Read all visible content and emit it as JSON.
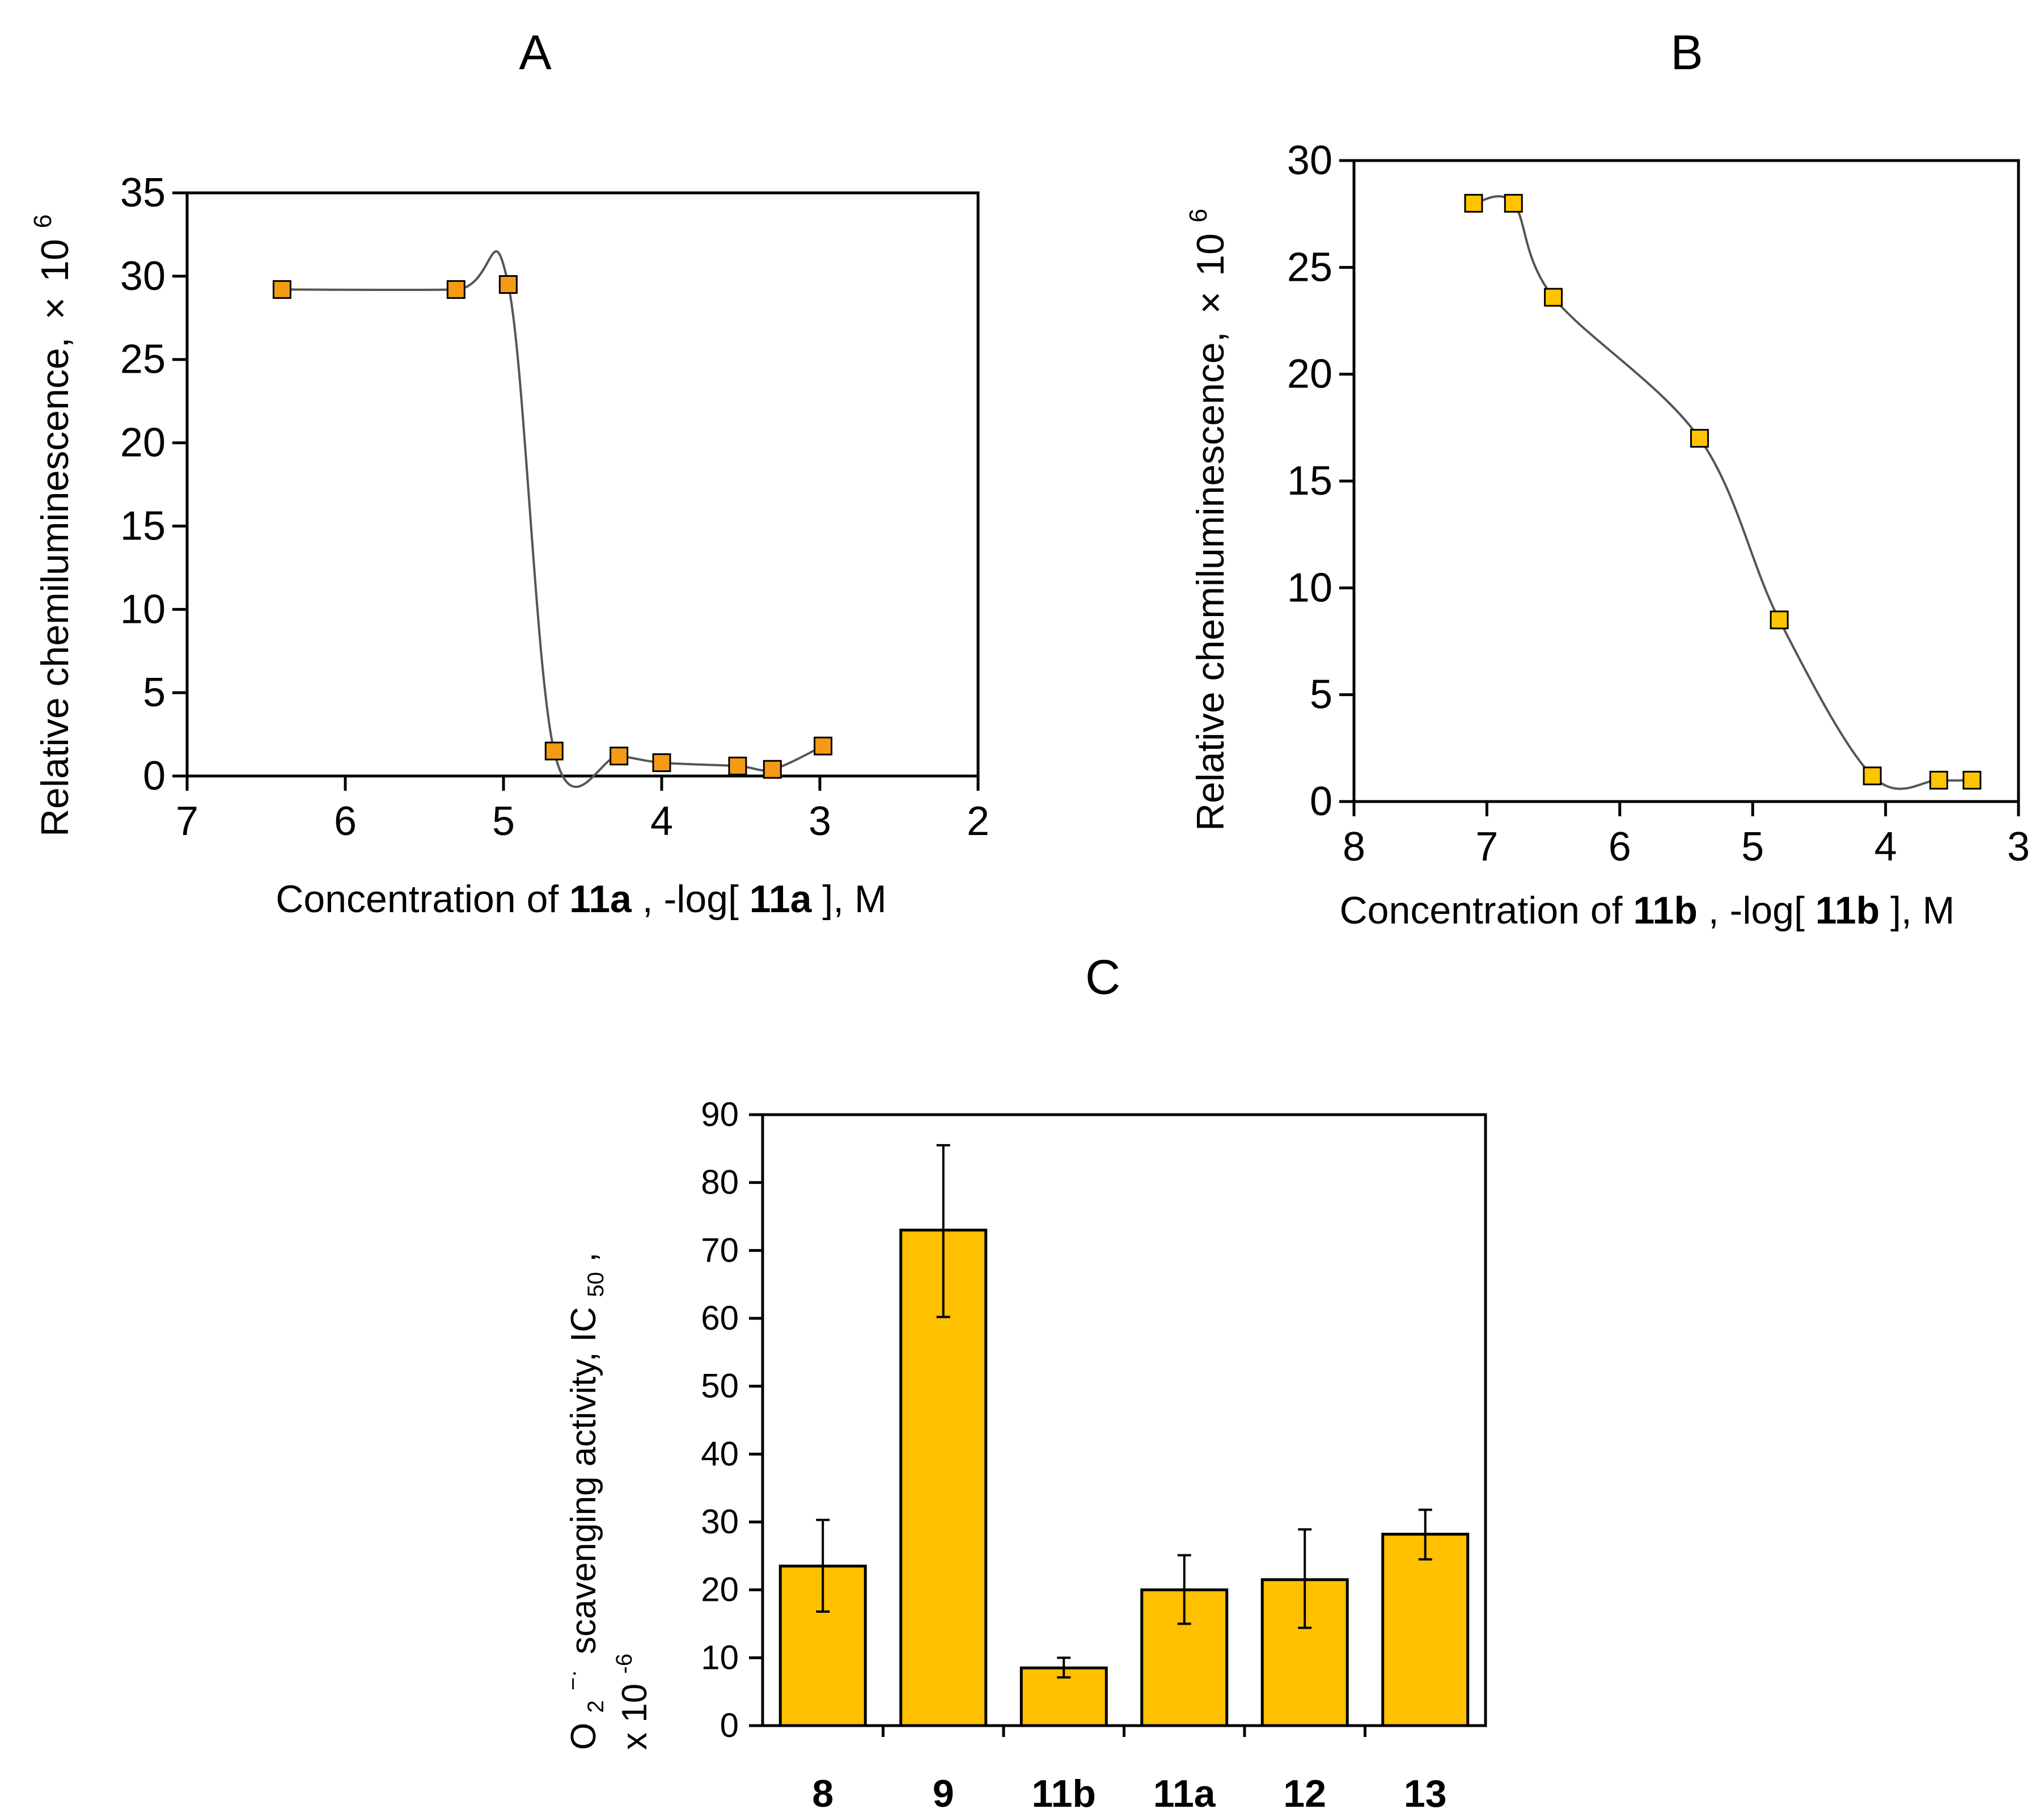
{
  "colors": {
    "marker_A": "#f59a14",
    "marker_B": "#ffc400",
    "bar_C": "#ffc000",
    "line": "#555555",
    "axis": "#000000"
  },
  "chart_data": [
    {
      "id": "A",
      "type": "line",
      "panel_label": "A",
      "ylabel_main": "Relative chemiluminescence,",
      "ylabel_mult": "×",
      "ylabel_base": "10",
      "ylabel_exp": "6",
      "xlabel_pre": "Concentration of ",
      "xlabel_cmp1": "11a",
      "xlabel_mid": ", -log[",
      "xlabel_cmp2": "11a",
      "xlabel_post": "], M",
      "xlim": [
        7,
        2
      ],
      "ylim": [
        0,
        35
      ],
      "x_ticks": [
        7,
        6,
        5,
        4,
        3,
        2
      ],
      "y_ticks": [
        0,
        5,
        10,
        15,
        20,
        25,
        30,
        35
      ],
      "x_tick_labels": [
        "7",
        "6",
        "5",
        "4",
        "3",
        "2"
      ],
      "y_tick_labels": [
        "0",
        "5",
        "10",
        "15",
        "20",
        "25",
        "30",
        "35"
      ],
      "series": [
        {
          "name": "11a",
          "x": [
            6.4,
            5.3,
            4.97,
            4.68,
            4.27,
            4.0,
            3.52,
            3.3,
            2.98
          ],
          "y": [
            29.2,
            29.2,
            29.5,
            1.5,
            1.2,
            0.8,
            0.6,
            0.4,
            1.8
          ]
        }
      ]
    },
    {
      "id": "B",
      "type": "line",
      "panel_label": "B",
      "ylabel_main": "Relative chemiluminescence,",
      "ylabel_mult": "×",
      "ylabel_base": "10",
      "ylabel_exp": "6",
      "xlabel_pre": "Concentration of ",
      "xlabel_cmp1": "11b",
      "xlabel_mid": ", -log[",
      "xlabel_cmp2": "11b",
      "xlabel_post": "], M",
      "xlim": [
        8,
        3
      ],
      "ylim": [
        0,
        30
      ],
      "x_ticks": [
        8,
        7,
        6,
        5,
        4,
        3
      ],
      "y_ticks": [
        0,
        5,
        10,
        15,
        20,
        25,
        30
      ],
      "x_tick_labels": [
        "8",
        "7",
        "6",
        "5",
        "4",
        "3"
      ],
      "y_tick_labels": [
        "0",
        "5",
        "10",
        "15",
        "20",
        "25",
        "30"
      ],
      "series": [
        {
          "name": "11b",
          "x": [
            7.1,
            6.8,
            6.5,
            5.4,
            4.8,
            4.1,
            3.6,
            3.35
          ],
          "y": [
            28.0,
            28.0,
            23.6,
            17.0,
            8.5,
            1.2,
            1.0,
            1.0
          ]
        }
      ]
    },
    {
      "id": "C",
      "type": "bar",
      "panel_label": "C",
      "ylabel_main": "scavenging activity, IC",
      "ylabel_o": "O",
      "ylabel_o_sub": "2",
      "ylabel_o_sup": "−·",
      "ylabel_ic_sub": "50",
      "ylabel_comma": ",",
      "ylabel_line2": "x 10",
      "ylabel_line2_exp": "-6",
      "ylim": [
        0,
        90
      ],
      "y_ticks": [
        0,
        10,
        20,
        30,
        40,
        50,
        60,
        70,
        80,
        90
      ],
      "y_tick_labels": [
        "0",
        "10",
        "20",
        "30",
        "40",
        "50",
        "60",
        "70",
        "80",
        "90"
      ],
      "categories": [
        "8",
        "9",
        "11b",
        "11a",
        "12",
        "13"
      ],
      "values": [
        23.5,
        73.0,
        8.5,
        20.0,
        21.5,
        28.2
      ],
      "error_low": [
        16.8,
        60.2,
        7.1,
        15.0,
        14.4,
        24.5
      ],
      "error_high": [
        30.3,
        85.5,
        10.0,
        25.1,
        28.9,
        31.8
      ]
    }
  ]
}
